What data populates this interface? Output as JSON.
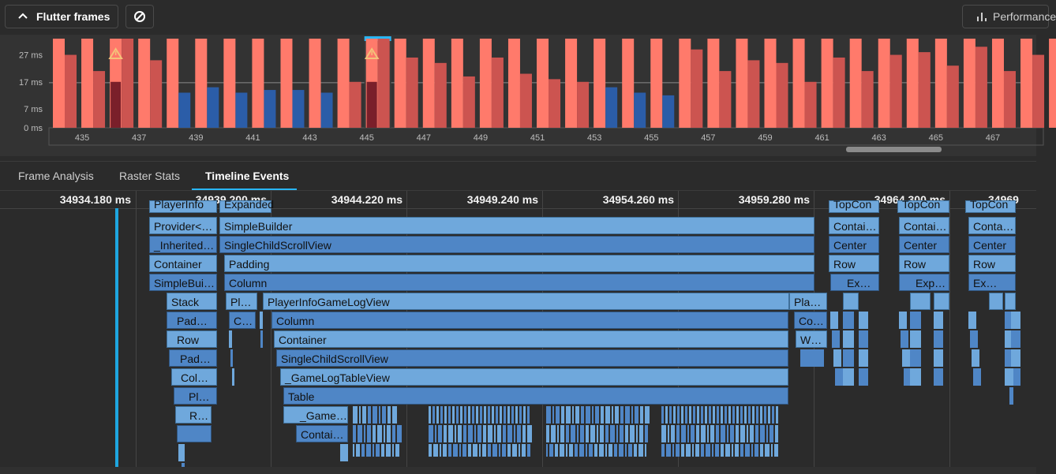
{
  "toolbar": {
    "flutter_frames_label": "Flutter frames",
    "performance_label": "Performance"
  },
  "chart_data": {
    "type": "bar",
    "y_ticks": [
      "27 ms",
      "17 ms",
      "7 ms",
      "0 ms"
    ],
    "x_ticks": [
      "435",
      "437",
      "439",
      "441",
      "443",
      "445",
      "447",
      "449",
      "451",
      "453",
      "455",
      "457",
      "459",
      "461",
      "463",
      "465",
      "467"
    ],
    "ylim": [
      0,
      33
    ],
    "target_line_ms": 16.7,
    "selected_frame": "445",
    "jank_frames": [
      "436",
      "445"
    ],
    "series": [
      {
        "name": "UI",
        "values_ms": [
          33,
          33,
          33,
          33,
          33,
          33,
          33,
          33,
          33,
          33,
          33,
          33,
          33,
          33,
          33,
          33,
          33,
          33,
          33,
          33,
          33,
          33,
          33,
          33,
          33,
          33,
          33,
          33,
          33,
          33,
          33,
          33,
          33,
          33,
          33,
          33
        ]
      },
      {
        "name": "Raster",
        "values_ms": [
          27,
          21,
          33,
          25,
          13,
          15,
          13,
          14,
          14,
          13,
          17,
          33,
          26,
          24,
          19,
          26,
          20,
          18,
          17,
          15,
          13,
          12,
          29,
          21,
          25,
          24,
          17,
          26,
          21,
          27,
          28,
          23,
          30,
          21,
          27,
          23
        ]
      }
    ],
    "colors": {
      "ui": "#ff7a6b",
      "raster_jank": "#cc5450",
      "raster_ok": "#2b5da8",
      "jank_ui": "#7a1f2a"
    }
  },
  "tabs": [
    "Frame Analysis",
    "Raster Stats",
    "Timeline Events"
  ],
  "timeline": {
    "ticks": [
      "34934.180 ms",
      "34939.200 ms",
      "34944.220 ms",
      "34949.240 ms",
      "34954.260 ms",
      "34959.280 ms",
      "34964.300 ms",
      "34969"
    ],
    "events": {
      "r0a": "PlayerInfo",
      "r0b": "Expanded",
      "r0c": "TopCon",
      "r0d": "TopCon",
      "r0e": "TopCon",
      "e1a": "Provider<…",
      "e1b": "SimpleBuilder",
      "e1c": "Contai…",
      "e1d": "Contai…",
      "e1e": "Conta…",
      "e2a": "_Inherited…",
      "e2b": "SingleChildScrollView",
      "e2c": "Center",
      "e2d": "Center",
      "e2e": "Center",
      "e3a": "Container",
      "e3b": "Padding",
      "e3c": "Row",
      "e3d": "Row",
      "e3e": "Row",
      "e4a": "SimpleBui…",
      "e4b": "Column",
      "e4c": "Ex…",
      "e4d": "Exp…",
      "e4e": "Ex…",
      "e5a": "Stack",
      "e5b": "Pl…",
      "e5c": "PlayerInfoGameLogView",
      "e5d": "Pla…",
      "e6a": "Pad…",
      "e6b": "C…",
      "e6c": "Column",
      "e6d": "Co…",
      "e7a": "Row",
      "e7b": "Container",
      "e7c": "W…",
      "e8a": "Pad…",
      "e8b": "SingleChildScrollView",
      "e9a": "Col…",
      "e9b": "_GameLogTableView",
      "e10a": "Pl…",
      "e10b": "Table",
      "e11a": "R…",
      "e11b": "_Game…",
      "e12b": "Contai…"
    }
  }
}
